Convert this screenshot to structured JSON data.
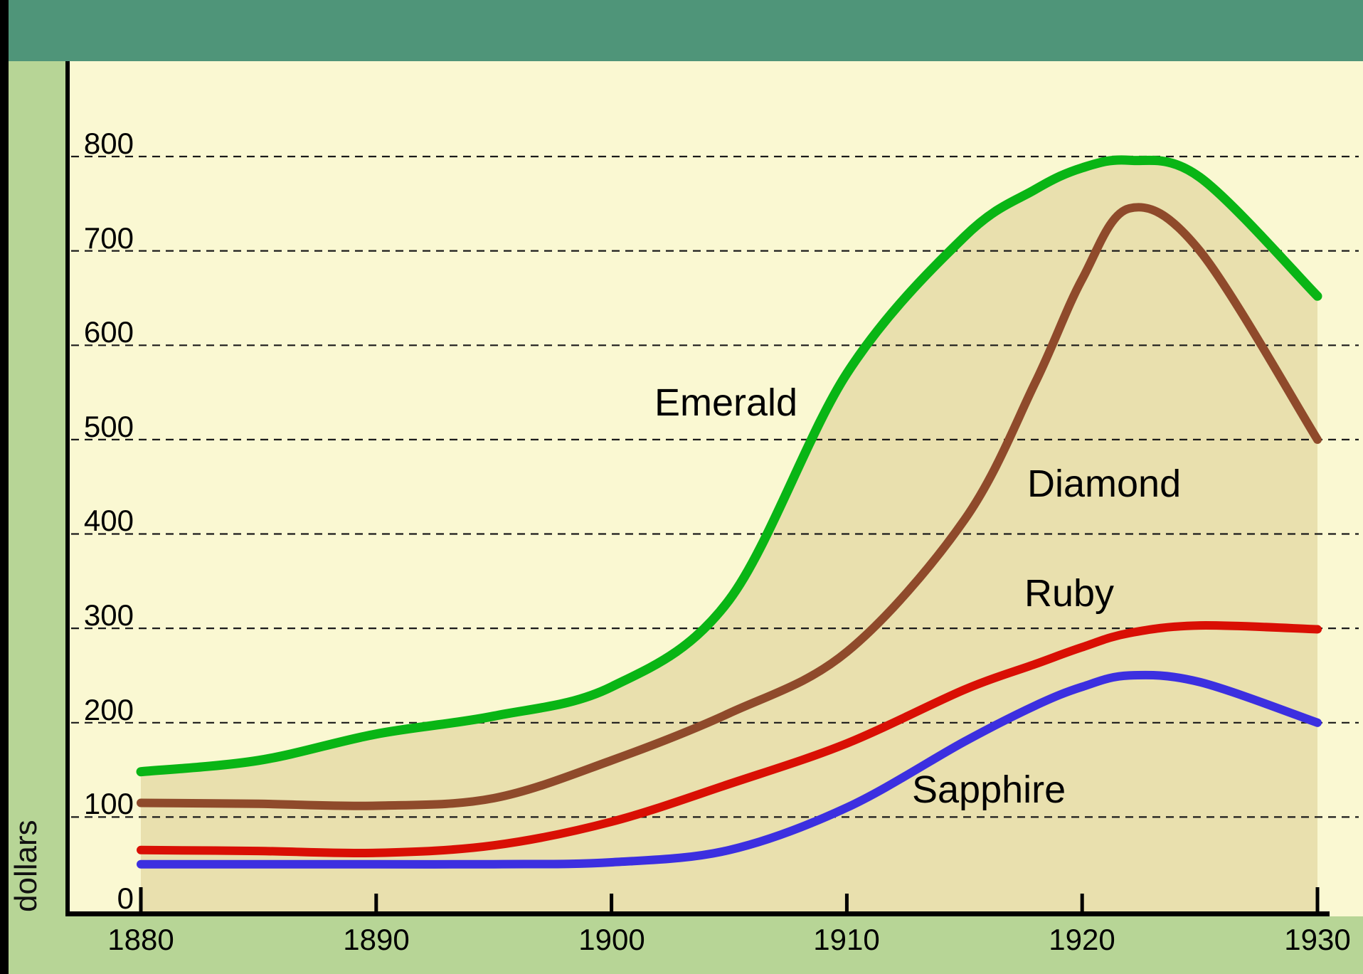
{
  "chart_data": {
    "type": "line",
    "title": "",
    "ylabel": "dollars",
    "xlabel": "",
    "xlim": [
      1880,
      1930
    ],
    "ylim": [
      0,
      800
    ],
    "grid": "dashed-horizontal",
    "legend": "inline-labels",
    "xticks": [
      1880,
      1890,
      1900,
      1910,
      1920,
      1930
    ],
    "yticks": [
      800,
      700,
      600,
      500,
      400,
      300,
      200,
      100,
      0
    ],
    "x": [
      1880,
      1885,
      1890,
      1895,
      1900,
      1905,
      1910,
      1915,
      1918,
      1920,
      1922,
      1925,
      1930
    ],
    "series": [
      {
        "name": "Emerald",
        "color": "#09b515",
        "fill_under": true,
        "values": [
          148,
          160,
          188,
          207,
          238,
          330,
          570,
          715,
          765,
          788,
          796,
          778,
          652
        ]
      },
      {
        "name": "Diamond",
        "color": "#8f4a2b",
        "values": [
          115,
          114,
          112,
          120,
          160,
          210,
          275,
          415,
          560,
          670,
          745,
          700,
          500
        ]
      },
      {
        "name": "Ruby",
        "color": "#d90f04",
        "values": [
          65,
          64,
          62,
          70,
          95,
          135,
          178,
          235,
          262,
          280,
          295,
          303,
          299
        ]
      },
      {
        "name": "Sapphire",
        "color": "#3c2fe0",
        "values": [
          50,
          50,
          50,
          50,
          52,
          65,
          110,
          180,
          218,
          238,
          250,
          243,
          200
        ]
      }
    ]
  },
  "colors": {
    "top_bar": "#4f9579",
    "side_strip": "#b7d596",
    "plot_bg": "#faf8d2",
    "area_fill": "#e9e0ae",
    "axis": "#000000",
    "gridline": "#1a1a1a"
  }
}
